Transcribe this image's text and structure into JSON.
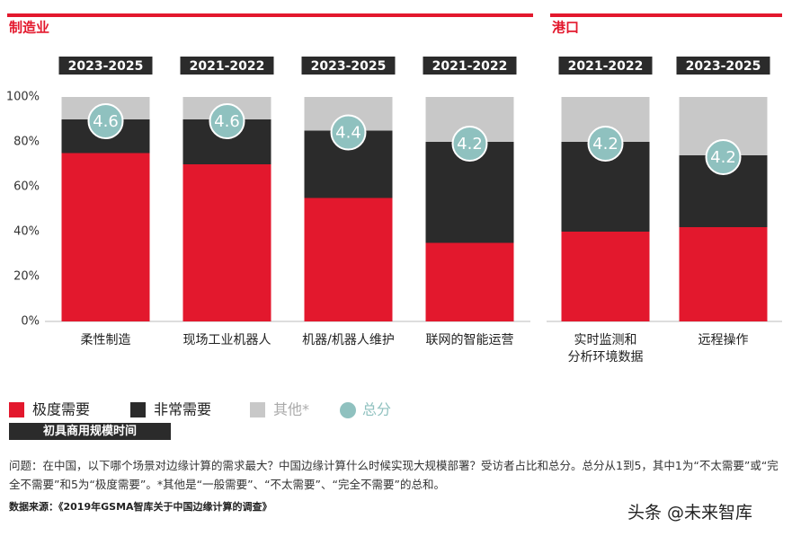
{
  "chart_data": [
    {
      "type": "bar",
      "stacked": true,
      "title": "制造业",
      "categories": [
        "柔性制造",
        "现场工业机器人",
        "机器/机器人维护",
        "联网的智能运营"
      ],
      "periods": [
        "2023-2025",
        "2021-2022",
        "2023-2025",
        "2021-2022"
      ],
      "series": [
        {
          "name": "极度需要",
          "color": "#e3182d",
          "values": [
            75,
            70,
            55,
            35
          ]
        },
        {
          "name": "非常需要",
          "color": "#2b2b2b",
          "values": [
            15,
            20,
            30,
            45
          ]
        },
        {
          "name": "其他*",
          "color": "#c8c8c8",
          "values": [
            10,
            10,
            15,
            20
          ]
        }
      ],
      "scores": {
        "name": "总分",
        "color": "#8fc1bf",
        "values": [
          4.6,
          4.6,
          4.4,
          4.2
        ]
      },
      "ylim": [
        0,
        100
      ],
      "yticks": [
        {
          "value": 0,
          "label": "0%"
        },
        {
          "value": 20,
          "label": "20%"
        },
        {
          "value": 40,
          "label": "40%"
        },
        {
          "value": 60,
          "label": "60%"
        },
        {
          "value": 80,
          "label": "80%"
        },
        {
          "value": 100,
          "label": "100%"
        }
      ]
    },
    {
      "type": "bar",
      "stacked": true,
      "title": "港口",
      "categories": [
        "实时监测和\n分析环境数据",
        "远程操作"
      ],
      "periods": [
        "2021-2022",
        "2023-2025"
      ],
      "series": [
        {
          "color": "#e3182d",
          "values": [
            40,
            42
          ]
        },
        {
          "color": "#2b2b2b",
          "values": [
            40,
            32
          ]
        },
        {
          "color": "#c8c8c8",
          "values": [
            20,
            26
          ]
        }
      ],
      "scores": {
        "color": "#8fc1bf",
        "values": [
          4.2,
          4.2
        ]
      },
      "ylim": [
        0,
        100
      ]
    }
  ],
  "notes": {
    "timing_label": "初具商用规模时间",
    "question": "问题：在中国，以下哪个场景对边缘计算的需求最大？中国边缘计算什么时候实现大规模部署？受访者占比和总分。总分从1到5，其中1为“不太需要”或“完全不需要”和5为“极度需要”。*其他是“一般需要”、“不太需要”、“完全不需要”的总和。",
    "source": "数据来源：《2019年GSMA智库关于中国边缘计算的调查》",
    "watermark": "头条 @未来智库"
  }
}
